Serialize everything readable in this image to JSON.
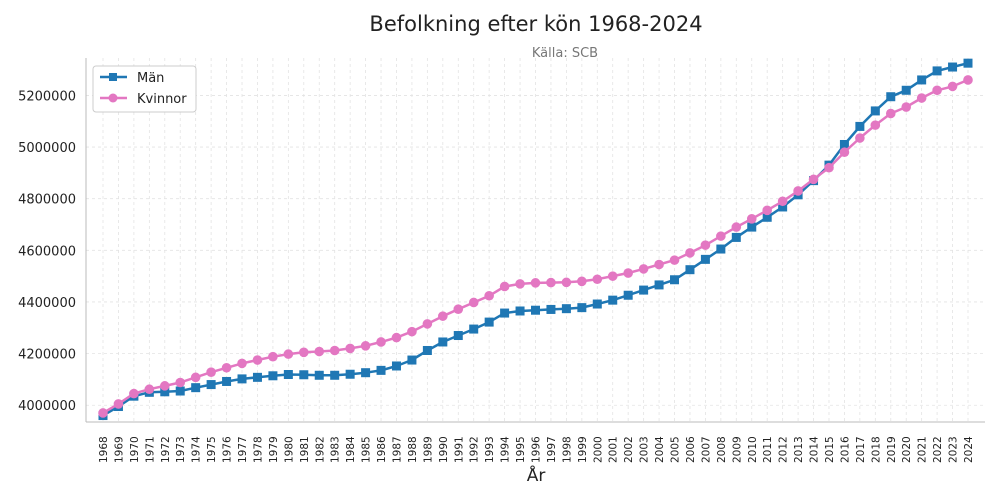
{
  "chart_data": {
    "type": "line",
    "title": "Befolkning efter kön 1968-2024",
    "subtitle": "Källa: SCB",
    "xlabel": "År",
    "ylabel": "",
    "ylim": [
      3935000,
      5345000
    ],
    "yticks": [
      "4000000",
      "4200000",
      "4400000",
      "4600000",
      "4800000",
      "5000000",
      "5200000"
    ],
    "grid": true,
    "legend_position": "top-left",
    "categories": [
      "1968",
      "1969",
      "1970",
      "1971",
      "1972",
      "1973",
      "1974",
      "1975",
      "1976",
      "1977",
      "1978",
      "1979",
      "1980",
      "1981",
      "1982",
      "1983",
      "1984",
      "1985",
      "1986",
      "1987",
      "1988",
      "1989",
      "1990",
      "1991",
      "1992",
      "1993",
      "1994",
      "1995",
      "1996",
      "1997",
      "1998",
      "1999",
      "2000",
      "2001",
      "2002",
      "2003",
      "2004",
      "2005",
      "2006",
      "2007",
      "2008",
      "2009",
      "2010",
      "2011",
      "2012",
      "2013",
      "2014",
      "2015",
      "2016",
      "2017",
      "2018",
      "2019",
      "2020",
      "2021",
      "2022",
      "2023",
      "2024"
    ],
    "series": [
      {
        "name": "Män",
        "color": "#1f77b4",
        "marker": "square",
        "values": [
          3960000,
          3995000,
          4035000,
          4050000,
          4052000,
          4055000,
          4068000,
          4080000,
          4092000,
          4102000,
          4108000,
          4114000,
          4119000,
          4118000,
          4116000,
          4116000,
          4120000,
          4126000,
          4135000,
          4152000,
          4175000,
          4212000,
          4245000,
          4270000,
          4295000,
          4322000,
          4357000,
          4365000,
          4368000,
          4371000,
          4374000,
          4378000,
          4392000,
          4407000,
          4426000,
          4446000,
          4466000,
          4486000,
          4525000,
          4565000,
          4605000,
          4650000,
          4690000,
          4728000,
          4768000,
          4815000,
          4870000,
          4930000,
          5010000,
          5080000,
          5140000,
          5195000,
          5220000,
          5260000,
          5295000,
          5310000,
          5325000
        ]
      },
      {
        "name": "Kvinnor",
        "color": "#e377c2",
        "marker": "circle",
        "values": [
          3970000,
          4005000,
          4045000,
          4062000,
          4075000,
          4088000,
          4108000,
          4128000,
          4145000,
          4162000,
          4175000,
          4188000,
          4198000,
          4205000,
          4208000,
          4212000,
          4220000,
          4230000,
          4245000,
          4262000,
          4285000,
          4315000,
          4345000,
          4372000,
          4398000,
          4424000,
          4460000,
          4470000,
          4474000,
          4475000,
          4476000,
          4480000,
          4488000,
          4500000,
          4512000,
          4528000,
          4545000,
          4562000,
          4590000,
          4620000,
          4655000,
          4690000,
          4722000,
          4755000,
          4790000,
          4830000,
          4875000,
          4920000,
          4980000,
          5035000,
          5085000,
          5130000,
          5155000,
          5190000,
          5220000,
          5235000,
          5260000
        ]
      }
    ]
  }
}
